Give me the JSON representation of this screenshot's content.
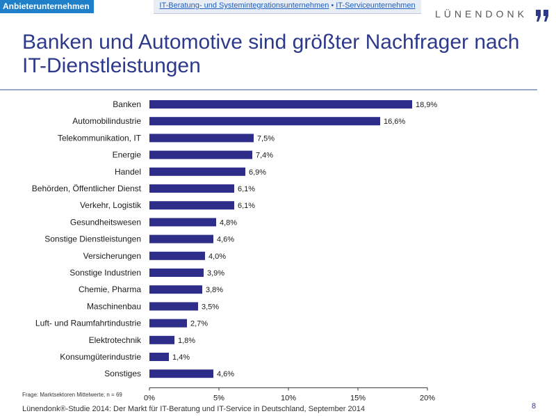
{
  "header": {
    "tag": "Anbieterunternehmen",
    "breadcrumb_1": "IT-Beratung- und Systemintegrationsunternehmen",
    "breadcrumb_sep": "•",
    "breadcrumb_2": "IT-Serviceunternehmen",
    "logo": "LÜNENDONK"
  },
  "title": "Banken und Automotive sind größter Nachfrager nach IT-Dienstleistungen",
  "footnote": "Frage: Marktsektoren Mittelwerte; n = 69",
  "source": "Lünendonk®-Studie 2014: Der Markt für IT-Beratung und IT-Service in Deutschland, September 2014",
  "page_number": "8",
  "colors": {
    "bar": "#2e2e8a",
    "title": "#2d3a8c",
    "accent": "#1f7fc9"
  },
  "chart_data": {
    "type": "bar",
    "orientation": "horizontal",
    "categories": [
      "Banken",
      "Automobilindustrie",
      "Telekommunikation, IT",
      "Energie",
      "Handel",
      "Behörden, Öffentlicher Dienst",
      "Verkehr, Logistik",
      "Gesundheitswesen",
      "Sonstige Dienstleistungen",
      "Versicherungen",
      "Sonstige Industrien",
      "Chemie, Pharma",
      "Maschinenbau",
      "Luft- und Raumfahrtindustrie",
      "Elektrotechnik",
      "Konsumgüterindustrie",
      "Sonstiges"
    ],
    "values": [
      18.9,
      16.6,
      7.5,
      7.4,
      6.9,
      6.1,
      6.1,
      4.8,
      4.6,
      4.0,
      3.9,
      3.8,
      3.5,
      2.7,
      1.8,
      1.4,
      4.6
    ],
    "value_labels": [
      "18,9%",
      "16,6%",
      "7,5%",
      "7,4%",
      "6,9%",
      "6,1%",
      "6,1%",
      "4,8%",
      "4,6%",
      "4,0%",
      "3,9%",
      "3,8%",
      "3,5%",
      "2,7%",
      "1,8%",
      "1,4%",
      "4,6%"
    ],
    "xlim": [
      0,
      20
    ],
    "xticks": [
      0,
      5,
      10,
      15,
      20
    ],
    "xtick_labels": [
      "0%",
      "5%",
      "10%",
      "15%",
      "20%"
    ],
    "grid": false
  }
}
